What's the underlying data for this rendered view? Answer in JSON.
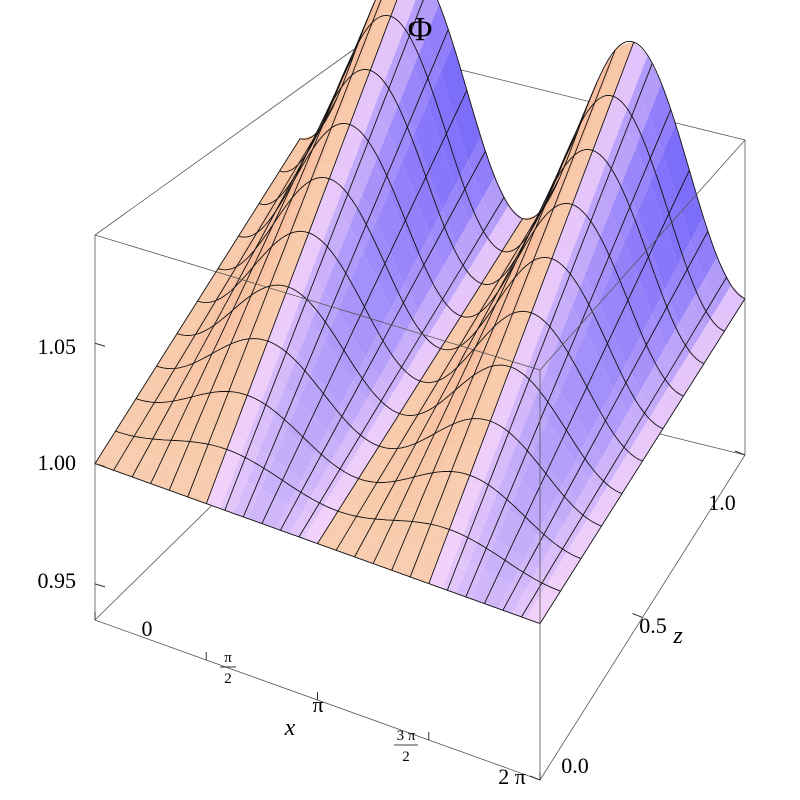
{
  "chart_data": {
    "type": "surface3d",
    "title": "Φ",
    "xlabel": "x",
    "zlabel": "z",
    "x_range": [
      0,
      6.2832
    ],
    "z_range": [
      0,
      1
    ],
    "value_range": [
      0.935,
      1.095
    ],
    "x_ticks": [
      {
        "value": 0,
        "label": "0"
      },
      {
        "value": 1.5708,
        "label_num": "π",
        "label_den": "2"
      },
      {
        "value": 3.1416,
        "label": "π"
      },
      {
        "value": 4.7124,
        "label_num": "3 π",
        "label_den": "2"
      },
      {
        "value": 6.2832,
        "label": "2 π"
      }
    ],
    "z_ticks": [
      {
        "value": 0,
        "label": "0.0"
      },
      {
        "value": 0.5,
        "label": "0.5"
      },
      {
        "value": 1,
        "label": "1.0"
      }
    ],
    "value_ticks": [
      {
        "value": 0.95,
        "label": "0.95"
      },
      {
        "value": 1.0,
        "label": "1.00"
      },
      {
        "value": 1.05,
        "label": "1.05"
      }
    ],
    "surface": {
      "description_formula": "Phi(x,z) = 1 + amplitude(z) * sin(2x - pi/2 ... ) approx, amplitude grows with z",
      "baseline": 1.0,
      "amplitude_at_z0": 0.0,
      "amplitude_at_z1": 0.09,
      "periods_over_range": 2
    },
    "colors": {
      "peach": "#f7c4a0",
      "blue": "#6f6ff0",
      "light_blue": "#a9e6ff",
      "pink": "#f9c6e8",
      "red": "#e8806a"
    }
  }
}
